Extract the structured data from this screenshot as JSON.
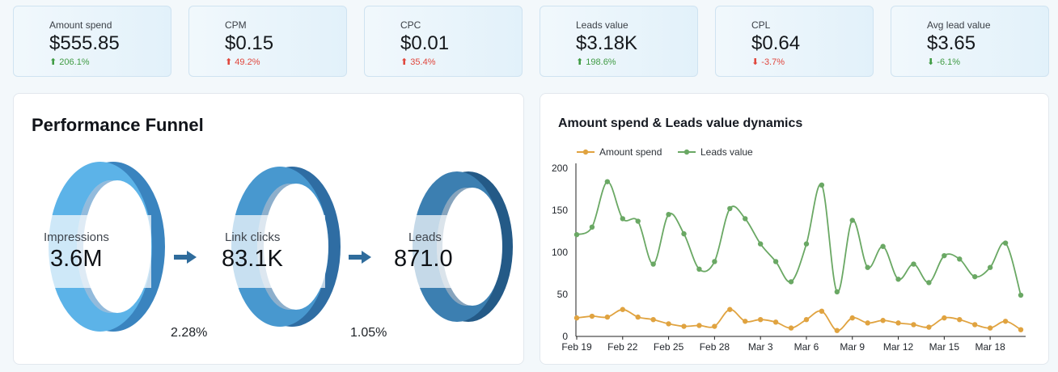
{
  "kpis": [
    {
      "label": "Amount spend",
      "value": "$555.85",
      "delta": "206.1%",
      "arrow": "⬆",
      "color": "#3f9b43"
    },
    {
      "label": "CPM",
      "value": "$0.15",
      "delta": "49.2%",
      "arrow": "⬆",
      "color": "#e0463c"
    },
    {
      "label": "CPC",
      "value": "$0.01",
      "delta": "35.4%",
      "arrow": "⬆",
      "color": "#e0463c"
    },
    {
      "label": "Leads value",
      "value": "$3.18K",
      "delta": "198.6%",
      "arrow": "⬆",
      "color": "#3f9b43"
    },
    {
      "label": "CPL",
      "value": "$0.64",
      "delta": "-3.7%",
      "arrow": "⬇",
      "color": "#e0463c"
    },
    {
      "label": "Avg lead value",
      "value": "$3.65",
      "delta": "-6.1%",
      "arrow": "⬇",
      "color": "#3f9b43"
    }
  ],
  "funnel": {
    "title": "Performance Funnel",
    "stages": [
      {
        "label": "Impressions",
        "value": "3.6M",
        "color": "#5cb3e8",
        "shade": "#3a84bf"
      },
      {
        "label": "Link clicks",
        "value": "83.1K",
        "color": "#4898cf",
        "shade": "#2f6da3"
      },
      {
        "label": "Leads",
        "value": "871.0",
        "color": "#3c7fb1",
        "shade": "#245a87"
      }
    ],
    "rates": [
      "2.28%",
      "1.05%"
    ],
    "arrow_color": "#2f6c9c"
  },
  "chart_panel": {
    "title": "Amount spend & Leads value dynamics"
  },
  "chart_data": {
    "type": "line",
    "title": "Amount spend & Leads value dynamics",
    "xlabel": "",
    "ylabel": "",
    "ylim": [
      0,
      200
    ],
    "yticks": [
      0,
      50,
      100,
      150,
      200
    ],
    "legend_position": "top-left",
    "grid": false,
    "x": [
      "Feb 19",
      "Feb 20",
      "Feb 21",
      "Feb 22",
      "Feb 23",
      "Feb 24",
      "Feb 25",
      "Feb 26",
      "Feb 27",
      "Feb 28",
      "Mar 1",
      "Mar 2",
      "Mar 3",
      "Mar 4",
      "Mar 5",
      "Mar 6",
      "Mar 7",
      "Mar 8",
      "Mar 9",
      "Mar 10",
      "Mar 11",
      "Mar 12",
      "Mar 13",
      "Mar 14",
      "Mar 15",
      "Mar 16",
      "Mar 17",
      "Mar 18",
      "Mar 19",
      "Mar 20"
    ],
    "x_tick_labels": [
      "Feb 19",
      "Feb 22",
      "Feb 25",
      "Feb 28",
      "Mar 3",
      "Mar 6",
      "Mar 9",
      "Mar 12",
      "Mar 15",
      "Mar 18"
    ],
    "series": [
      {
        "name": "Amount spend",
        "color": "#e0a340",
        "values": [
          22,
          24,
          23,
          32,
          23,
          20,
          15,
          12,
          13,
          12,
          32,
          18,
          20,
          17,
          10,
          20,
          30,
          7,
          22,
          16,
          19,
          16,
          14,
          11,
          22,
          20,
          14,
          10,
          18,
          8
        ]
      },
      {
        "name": "Leads value",
        "color": "#6aa864",
        "values": [
          121,
          130,
          184,
          140,
          137,
          86,
          145,
          122,
          80,
          89,
          152,
          140,
          110,
          89,
          65,
          110,
          180,
          53,
          138,
          82,
          107,
          68,
          86,
          64,
          96,
          92,
          71,
          82,
          111,
          49
        ]
      }
    ]
  }
}
